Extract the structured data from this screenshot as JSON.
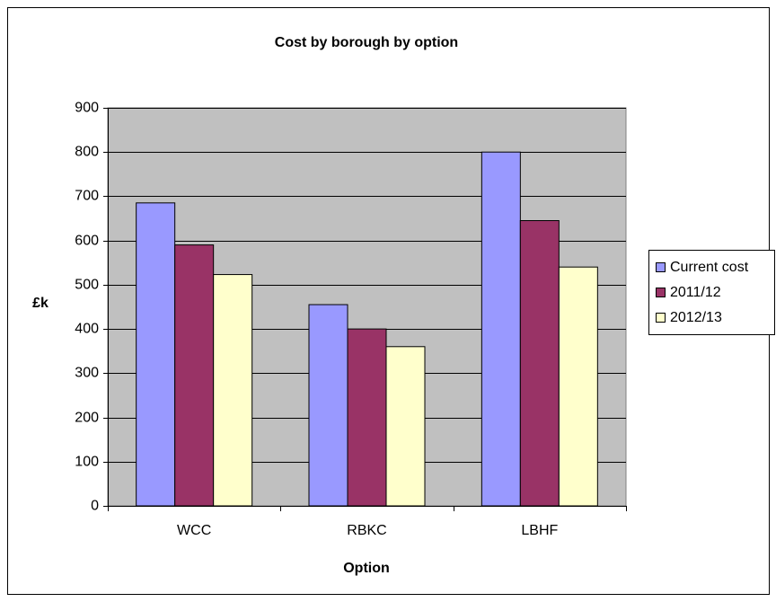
{
  "chart_data": {
    "type": "bar",
    "title": "Cost by borough by option",
    "x_label": "Option",
    "y_label": "£k",
    "categories": [
      "WCC",
      "RBKC",
      "LBHF"
    ],
    "series": [
      {
        "name": "Current cost",
        "color": "#9999ff",
        "values": [
          685,
          455,
          800
        ]
      },
      {
        "name": "2011/12",
        "color": "#993366",
        "values": [
          590,
          400,
          645
        ]
      },
      {
        "name": "2012/13",
        "color": "#ffffcc",
        "values": [
          523,
          360,
          540
        ]
      }
    ],
    "ylim": [
      0,
      900
    ],
    "yticks": [
      0,
      100,
      200,
      300,
      400,
      500,
      600,
      700,
      800,
      900
    ],
    "grid": true,
    "legend": "right",
    "plot_background": "#c0c0c0"
  }
}
